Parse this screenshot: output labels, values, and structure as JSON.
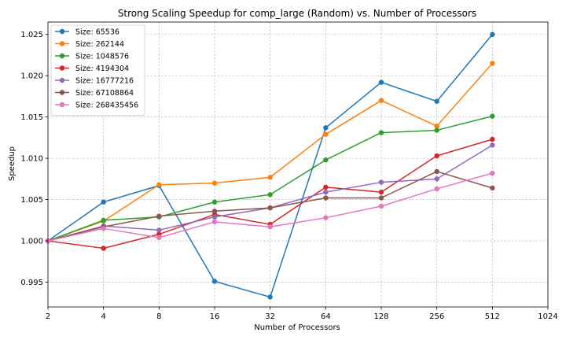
{
  "chart_data": {
    "type": "line",
    "title": "Strong Scaling Speedup for comp_large (Random) vs. Number of Processors",
    "xlabel": "Number of Processors",
    "ylabel": "Speedup",
    "x": [
      2,
      4,
      8,
      16,
      32,
      64,
      128,
      256,
      512
    ],
    "x_scale": "log2",
    "xticks": [
      "2",
      "4",
      "8",
      "16",
      "32",
      "64",
      "128",
      "256",
      "512",
      "1024"
    ],
    "xlim": [
      2,
      1024
    ],
    "ylim": [
      0.992,
      1.0265
    ],
    "yticks": [
      "0.995",
      "1.000",
      "1.005",
      "1.010",
      "1.015",
      "1.020",
      "1.025"
    ],
    "ytick_values": [
      0.995,
      1.0,
      1.005,
      1.01,
      1.015,
      1.02,
      1.025
    ],
    "grid": true,
    "legend_position": "upper-left",
    "series": [
      {
        "name": "Size: 65536",
        "color": "#1f77b4",
        "values": [
          1.0,
          1.0047,
          1.0067,
          0.9951,
          0.9932,
          1.0137,
          1.0192,
          1.0169,
          1.025
        ]
      },
      {
        "name": "Size: 262144",
        "color": "#ff7f0e",
        "values": [
          1.0,
          1.0024,
          1.0068,
          1.007,
          1.0077,
          1.0129,
          1.017,
          1.0139,
          1.0215
        ]
      },
      {
        "name": "Size: 1048576",
        "color": "#2ca02c",
        "values": [
          1.0,
          1.0025,
          1.0029,
          1.0047,
          1.0056,
          1.0098,
          1.0131,
          1.0134,
          1.0151
        ]
      },
      {
        "name": "Size: 4194304",
        "color": "#d62728",
        "values": [
          1.0,
          0.9991,
          1.0008,
          1.0032,
          1.002,
          1.0065,
          1.0059,
          1.0103,
          1.0123
        ]
      },
      {
        "name": "Size: 16777216",
        "color": "#9467bd",
        "values": [
          1.0,
          1.0018,
          1.0013,
          1.0029,
          1.004,
          1.0059,
          1.0071,
          1.0075,
          1.0116
        ]
      },
      {
        "name": "Size: 67108864",
        "color": "#8c564b",
        "values": [
          1.0,
          1.0017,
          1.003,
          1.0036,
          1.004,
          1.0052,
          1.0052,
          1.0084,
          1.0064
        ]
      },
      {
        "name": "Size: 268435456",
        "color": "#e377c2",
        "values": [
          1.0,
          1.0015,
          1.0004,
          1.0023,
          1.0017,
          1.0028,
          1.0042,
          1.0063,
          1.0082
        ]
      }
    ]
  }
}
